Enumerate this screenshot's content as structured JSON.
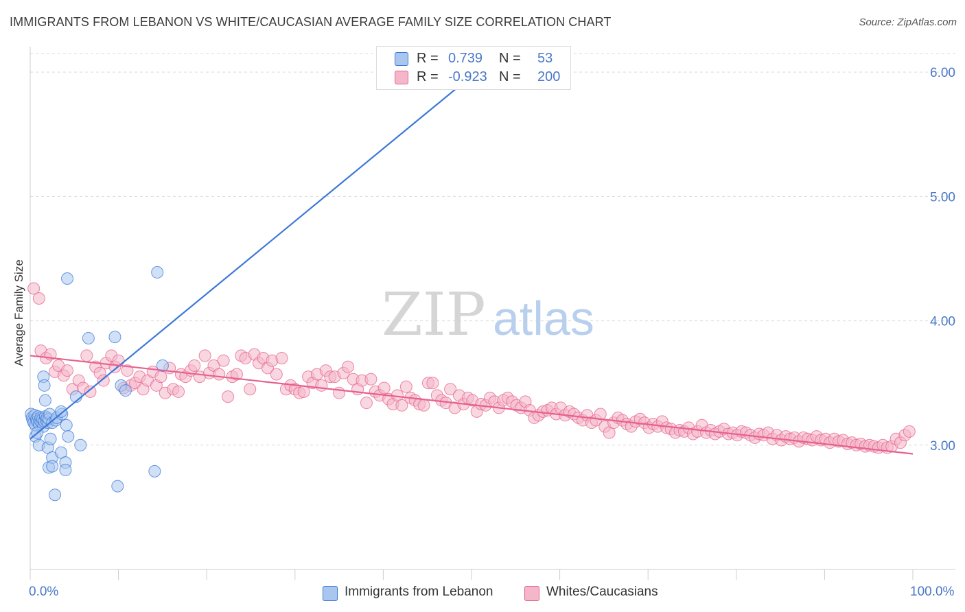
{
  "title": "IMMIGRANTS FROM LEBANON VS WHITE/CAUCASIAN AVERAGE FAMILY SIZE CORRELATION CHART",
  "source": "Source: ZipAtlas.com",
  "watermark": {
    "zip": "ZIP",
    "atlas": "atlas"
  },
  "legend": {
    "rows": [
      {
        "r_label": "R =",
        "r_value": " 0.739",
        "n_label": "N =",
        "n_value": " 53"
      },
      {
        "r_label": "R =",
        "r_value": "-0.923",
        "n_label": "N =",
        "n_value": "200"
      }
    ]
  },
  "colors": {
    "blue": "#3b78d8",
    "blue_fill": "#a9c6ef",
    "pink": "#e7608f",
    "pink_fill": "#f4b6c9",
    "grid": "#d9d9d9",
    "tick": "#4a78c8"
  },
  "chart_data": {
    "type": "scatter",
    "title": "IMMIGRANTS FROM LEBANON VS WHITE/CAUCASIAN AVERAGE FAMILY SIZE CORRELATION CHART",
    "xlabel": "",
    "ylabel": "Average Family Size",
    "xlim": [
      0,
      100
    ],
    "ylim": [
      2.0,
      6.15
    ],
    "x_tick_labels": [
      "0.0%",
      "100.0%"
    ],
    "y_ticks": [
      3.0,
      4.0,
      5.0,
      6.0
    ],
    "y_tick_labels": [
      "3.00",
      "4.00",
      "5.00",
      "6.00"
    ],
    "grid": true,
    "series": [
      {
        "name": "Immigrants from Lebanon",
        "color": "#3b78d8",
        "trend": {
          "x": [
            0,
            49.5
          ],
          "y": [
            3.05,
            5.94
          ]
        },
        "points": [
          [
            0.1,
            3.25
          ],
          [
            0.2,
            3.22
          ],
          [
            0.3,
            3.2
          ],
          [
            0.4,
            3.18
          ],
          [
            0.5,
            3.24
          ],
          [
            0.6,
            3.16
          ],
          [
            0.7,
            3.21
          ],
          [
            0.8,
            3.19
          ],
          [
            0.9,
            3.23
          ],
          [
            1.0,
            3.17
          ],
          [
            1.1,
            3.2
          ],
          [
            1.2,
            3.22
          ],
          [
            1.3,
            3.18
          ],
          [
            1.4,
            3.21
          ],
          [
            1.5,
            3.15
          ],
          [
            1.6,
            3.19
          ],
          [
            1.7,
            3.23
          ],
          [
            1.8,
            3.2
          ],
          [
            1.9,
            3.22
          ],
          [
            2.0,
            3.18
          ],
          [
            2.1,
            3.21
          ],
          [
            2.2,
            3.25
          ],
          [
            0.6,
            3.07
          ],
          [
            0.8,
            3.1
          ],
          [
            1.0,
            3.0
          ],
          [
            1.5,
            3.55
          ],
          [
            1.6,
            3.48
          ],
          [
            1.7,
            3.36
          ],
          [
            2.0,
            2.98
          ],
          [
            2.1,
            2.82
          ],
          [
            2.3,
            3.05
          ],
          [
            2.5,
            2.9
          ],
          [
            2.5,
            2.83
          ],
          [
            2.5,
            3.18
          ],
          [
            2.8,
            2.6
          ],
          [
            2.9,
            3.2
          ],
          [
            3.0,
            3.22
          ],
          [
            3.6,
            3.25
          ],
          [
            3.5,
            3.27
          ],
          [
            3.5,
            2.94
          ],
          [
            4.0,
            2.86
          ],
          [
            4.0,
            2.8
          ],
          [
            4.1,
            3.16
          ],
          [
            4.3,
            3.07
          ],
          [
            4.2,
            4.34
          ],
          [
            5.2,
            3.39
          ],
          [
            5.7,
            3.0
          ],
          [
            6.6,
            3.86
          ],
          [
            9.6,
            3.87
          ],
          [
            9.9,
            2.67
          ],
          [
            10.3,
            3.48
          ],
          [
            10.8,
            3.44
          ],
          [
            14.1,
            2.79
          ],
          [
            14.4,
            4.39
          ],
          [
            15.0,
            3.64
          ]
        ]
      },
      {
        "name": "Whites/Caucasians",
        "color": "#e7608f",
        "trend": {
          "x": [
            0,
            100
          ],
          "y": [
            3.72,
            2.93
          ]
        },
        "points": [
          [
            0.4,
            4.26
          ],
          [
            1.0,
            4.18
          ],
          [
            1.2,
            3.76
          ],
          [
            1.8,
            3.7
          ],
          [
            2.3,
            3.73
          ],
          [
            2.8,
            3.59
          ],
          [
            3.2,
            3.64
          ],
          [
            3.8,
            3.56
          ],
          [
            4.2,
            3.6
          ],
          [
            4.8,
            3.45
          ],
          [
            5.5,
            3.52
          ],
          [
            6.0,
            3.46
          ],
          [
            6.4,
            3.72
          ],
          [
            6.8,
            3.43
          ],
          [
            7.4,
            3.63
          ],
          [
            7.9,
            3.58
          ],
          [
            8.3,
            3.52
          ],
          [
            8.6,
            3.66
          ],
          [
            9.2,
            3.72
          ],
          [
            9.6,
            3.63
          ],
          [
            10.0,
            3.68
          ],
          [
            10.6,
            3.46
          ],
          [
            11.0,
            3.6
          ],
          [
            11.4,
            3.48
          ],
          [
            11.9,
            3.5
          ],
          [
            12.4,
            3.55
          ],
          [
            12.8,
            3.45
          ],
          [
            13.3,
            3.52
          ],
          [
            13.9,
            3.59
          ],
          [
            14.3,
            3.48
          ],
          [
            14.8,
            3.55
          ],
          [
            15.3,
            3.42
          ],
          [
            15.8,
            3.62
          ],
          [
            16.2,
            3.45
          ],
          [
            16.8,
            3.43
          ],
          [
            17.1,
            3.57
          ],
          [
            17.6,
            3.55
          ],
          [
            18.2,
            3.6
          ],
          [
            18.6,
            3.64
          ],
          [
            19.2,
            3.55
          ],
          [
            19.8,
            3.72
          ],
          [
            20.3,
            3.58
          ],
          [
            20.8,
            3.64
          ],
          [
            21.4,
            3.57
          ],
          [
            21.9,
            3.68
          ],
          [
            22.4,
            3.39
          ],
          [
            22.9,
            3.55
          ],
          [
            23.4,
            3.57
          ],
          [
            23.9,
            3.72
          ],
          [
            24.4,
            3.7
          ],
          [
            24.9,
            3.45
          ],
          [
            25.4,
            3.73
          ],
          [
            25.9,
            3.66
          ],
          [
            26.4,
            3.7
          ],
          [
            26.9,
            3.62
          ],
          [
            27.4,
            3.68
          ],
          [
            27.9,
            3.57
          ],
          [
            28.5,
            3.7
          ],
          [
            29.0,
            3.45
          ],
          [
            29.5,
            3.48
          ],
          [
            30.0,
            3.45
          ],
          [
            30.5,
            3.42
          ],
          [
            31.0,
            3.43
          ],
          [
            31.5,
            3.55
          ],
          [
            32.0,
            3.5
          ],
          [
            32.5,
            3.57
          ],
          [
            33.0,
            3.48
          ],
          [
            33.5,
            3.6
          ],
          [
            34.0,
            3.55
          ],
          [
            34.5,
            3.55
          ],
          [
            35.0,
            3.42
          ],
          [
            35.5,
            3.58
          ],
          [
            36.0,
            3.63
          ],
          [
            36.6,
            3.53
          ],
          [
            37.1,
            3.45
          ],
          [
            37.6,
            3.52
          ],
          [
            38.1,
            3.34
          ],
          [
            38.6,
            3.53
          ],
          [
            39.1,
            3.43
          ],
          [
            39.6,
            3.4
          ],
          [
            40.1,
            3.46
          ],
          [
            40.6,
            3.37
          ],
          [
            41.1,
            3.33
          ],
          [
            41.6,
            3.4
          ],
          [
            42.1,
            3.32
          ],
          [
            42.6,
            3.47
          ],
          [
            43.1,
            3.38
          ],
          [
            43.6,
            3.36
          ],
          [
            44.1,
            3.33
          ],
          [
            44.6,
            3.32
          ],
          [
            45.1,
            3.5
          ],
          [
            45.6,
            3.5
          ],
          [
            46.1,
            3.4
          ],
          [
            46.6,
            3.36
          ],
          [
            47.1,
            3.34
          ],
          [
            47.6,
            3.45
          ],
          [
            48.1,
            3.3
          ],
          [
            48.6,
            3.4
          ],
          [
            49.1,
            3.33
          ],
          [
            49.6,
            3.38
          ],
          [
            50.1,
            3.36
          ],
          [
            50.6,
            3.27
          ],
          [
            51.1,
            3.33
          ],
          [
            51.6,
            3.32
          ],
          [
            52.1,
            3.38
          ],
          [
            52.6,
            3.35
          ],
          [
            53.1,
            3.3
          ],
          [
            53.6,
            3.36
          ],
          [
            54.1,
            3.38
          ],
          [
            54.6,
            3.35
          ],
          [
            55.1,
            3.32
          ],
          [
            55.6,
            3.3
          ],
          [
            56.1,
            3.35
          ],
          [
            56.6,
            3.28
          ],
          [
            57.1,
            3.22
          ],
          [
            57.6,
            3.24
          ],
          [
            58.1,
            3.27
          ],
          [
            58.6,
            3.28
          ],
          [
            59.1,
            3.3
          ],
          [
            59.6,
            3.25
          ],
          [
            60.1,
            3.3
          ],
          [
            60.6,
            3.24
          ],
          [
            61.1,
            3.27
          ],
          [
            61.6,
            3.25
          ],
          [
            62.1,
            3.22
          ],
          [
            62.6,
            3.2
          ],
          [
            63.1,
            3.24
          ],
          [
            63.6,
            3.18
          ],
          [
            64.1,
            3.2
          ],
          [
            64.6,
            3.25
          ],
          [
            65.1,
            3.15
          ],
          [
            65.6,
            3.1
          ],
          [
            66.1,
            3.18
          ],
          [
            66.6,
            3.22
          ],
          [
            67.1,
            3.2
          ],
          [
            67.6,
            3.17
          ],
          [
            68.1,
            3.15
          ],
          [
            68.6,
            3.19
          ],
          [
            69.1,
            3.21
          ],
          [
            69.6,
            3.18
          ],
          [
            70.1,
            3.14
          ],
          [
            70.6,
            3.17
          ],
          [
            71.1,
            3.15
          ],
          [
            71.6,
            3.19
          ],
          [
            72.1,
            3.14
          ],
          [
            72.6,
            3.13
          ],
          [
            73.1,
            3.1
          ],
          [
            73.6,
            3.12
          ],
          [
            74.1,
            3.11
          ],
          [
            74.6,
            3.14
          ],
          [
            75.1,
            3.09
          ],
          [
            75.6,
            3.11
          ],
          [
            76.1,
            3.16
          ],
          [
            76.6,
            3.1
          ],
          [
            77.1,
            3.12
          ],
          [
            77.6,
            3.09
          ],
          [
            78.1,
            3.11
          ],
          [
            78.6,
            3.13
          ],
          [
            79.1,
            3.09
          ],
          [
            79.6,
            3.1
          ],
          [
            80.1,
            3.08
          ],
          [
            80.6,
            3.11
          ],
          [
            81.1,
            3.1
          ],
          [
            81.6,
            3.08
          ],
          [
            82.1,
            3.06
          ],
          [
            82.6,
            3.09
          ],
          [
            83.1,
            3.08
          ],
          [
            83.6,
            3.1
          ],
          [
            84.1,
            3.05
          ],
          [
            84.6,
            3.08
          ],
          [
            85.1,
            3.04
          ],
          [
            85.6,
            3.07
          ],
          [
            86.1,
            3.05
          ],
          [
            86.6,
            3.06
          ],
          [
            87.1,
            3.03
          ],
          [
            87.6,
            3.06
          ],
          [
            88.1,
            3.05
          ],
          [
            88.6,
            3.04
          ],
          [
            89.1,
            3.07
          ],
          [
            89.6,
            3.04
          ],
          [
            90.1,
            3.05
          ],
          [
            90.6,
            3.02
          ],
          [
            91.1,
            3.05
          ],
          [
            91.6,
            3.03
          ],
          [
            92.1,
            3.04
          ],
          [
            92.6,
            3.01
          ],
          [
            93.1,
            3.02
          ],
          [
            93.6,
            3.0
          ],
          [
            94.1,
            3.01
          ],
          [
            94.6,
            2.99
          ],
          [
            95.1,
            3.0
          ],
          [
            95.6,
            2.99
          ],
          [
            96.1,
            2.98
          ],
          [
            96.6,
            3.0
          ],
          [
            97.1,
            2.98
          ],
          [
            97.6,
            2.99
          ],
          [
            98.1,
            3.05
          ],
          [
            98.6,
            3.02
          ],
          [
            99.1,
            3.08
          ],
          [
            99.6,
            3.11
          ]
        ]
      }
    ]
  }
}
